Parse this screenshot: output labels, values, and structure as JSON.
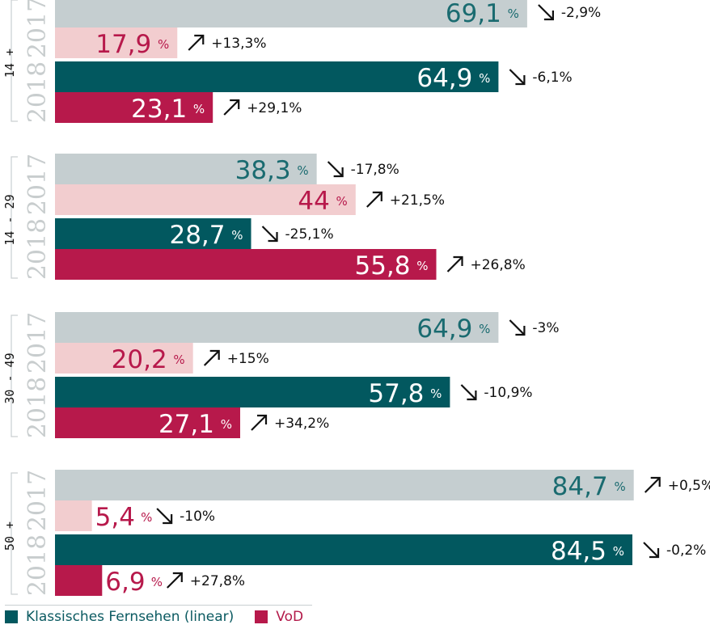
{
  "chart_data": {
    "type": "bar",
    "orientation": "horizontal",
    "xlim": [
      0,
      100
    ],
    "unit": "%",
    "years": [
      "2017",
      "2018"
    ],
    "series_names": {
      "linear": "Klassisches Fernsehen (linear)",
      "vod": "VoD"
    },
    "colors": {
      "linear_2018": "#02585f",
      "linear_2017": "#c5ced0",
      "linear_text_light_bar": "#1a6b70",
      "vod_2018": "#b7194b",
      "vod_2017": "#f2cdcf",
      "vod_text_light_bar": "#b7194b",
      "year_label": "#c8cdce",
      "arrow": "#111111"
    },
    "groups": [
      {
        "label": "14 +",
        "bars": [
          {
            "year": "2017",
            "series": "linear",
            "value": 69.1,
            "value_text": "69,1",
            "change": "-2,9%",
            "direction": "down"
          },
          {
            "year": "2017",
            "series": "vod",
            "value": 17.9,
            "value_text": "17,9",
            "change": "+13,3%",
            "direction": "up"
          },
          {
            "year": "2018",
            "series": "linear",
            "value": 64.9,
            "value_text": "64,9",
            "change": "-6,1%",
            "direction": "down"
          },
          {
            "year": "2018",
            "series": "vod",
            "value": 23.1,
            "value_text": "23,1",
            "change": "+29,1%",
            "direction": "up"
          }
        ]
      },
      {
        "label": "14 - 29",
        "bars": [
          {
            "year": "2017",
            "series": "linear",
            "value": 38.3,
            "value_text": "38,3",
            "change": "-17,8%",
            "direction": "down"
          },
          {
            "year": "2017",
            "series": "vod",
            "value": 44,
            "value_text": "44",
            "change": "+21,5%",
            "direction": "up"
          },
          {
            "year": "2018",
            "series": "linear",
            "value": 28.7,
            "value_text": "28,7",
            "change": "-25,1%",
            "direction": "down"
          },
          {
            "year": "2018",
            "series": "vod",
            "value": 55.8,
            "value_text": "55,8",
            "change": "+26,8%",
            "direction": "up"
          }
        ]
      },
      {
        "label": "30 - 49",
        "bars": [
          {
            "year": "2017",
            "series": "linear",
            "value": 64.9,
            "value_text": "64,9",
            "change": "-3%",
            "direction": "down"
          },
          {
            "year": "2017",
            "series": "vod",
            "value": 20.2,
            "value_text": "20,2",
            "change": "+15%",
            "direction": "up"
          },
          {
            "year": "2018",
            "series": "linear",
            "value": 57.8,
            "value_text": "57,8",
            "change": "-10,9%",
            "direction": "down"
          },
          {
            "year": "2018",
            "series": "vod",
            "value": 27.1,
            "value_text": "27,1",
            "change": "+34,2%",
            "direction": "up"
          }
        ]
      },
      {
        "label": "50 +",
        "bars": [
          {
            "year": "2017",
            "series": "linear",
            "value": 84.7,
            "value_text": "84,7",
            "change": "+0,5%",
            "direction": "up"
          },
          {
            "year": "2017",
            "series": "vod",
            "value": 5.4,
            "value_text": "5,4",
            "change": "-10%",
            "direction": "down"
          },
          {
            "year": "2018",
            "series": "linear",
            "value": 84.5,
            "value_text": "84,5",
            "change": "-0,2%",
            "direction": "down"
          },
          {
            "year": "2018",
            "series": "vod",
            "value": 6.9,
            "value_text": "6,9",
            "change": "+27,8%",
            "direction": "up"
          }
        ]
      }
    ]
  },
  "legend": {
    "linear_label": "Klassisches Fernsehen (linear)",
    "vod_label": "VoD",
    "linear_color": "#02585f",
    "vod_color": "#b7194b"
  }
}
